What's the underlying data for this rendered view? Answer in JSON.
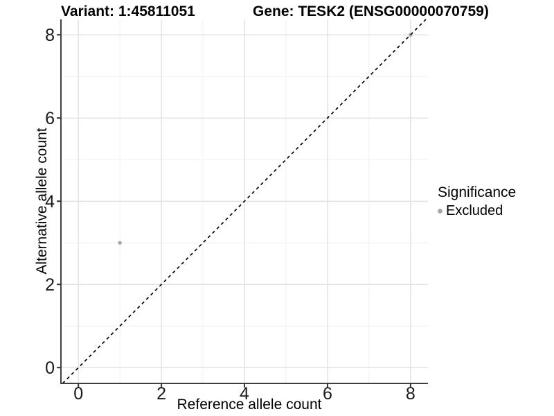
{
  "header": {
    "variant_title": "Variant: 1:45811051",
    "gene_title": "Gene: TESK2 (ENSG00000070759)"
  },
  "chart_data": {
    "type": "scatter",
    "xlabel": "Reference allele count",
    "ylabel": "Alternative allele count",
    "x_ticks": [
      0,
      2,
      4,
      6,
      8
    ],
    "y_ticks": [
      0,
      2,
      4,
      6,
      8
    ],
    "x_minor": [
      1,
      3,
      5,
      7
    ],
    "y_minor": [
      1,
      3,
      5,
      7
    ],
    "xlim": [
      -0.42,
      8.42
    ],
    "ylim": [
      -0.38,
      8.37
    ],
    "grid": "major+minor",
    "reference_line": {
      "equation": "y = x",
      "style": "dashed",
      "color": "#000000"
    },
    "series": [
      {
        "name": "Excluded",
        "color": "#a8a8a8",
        "points": [
          [
            1,
            3
          ],
          [
            8,
            8
          ]
        ]
      }
    ],
    "legend": {
      "title": "Significance",
      "position": "right",
      "items": [
        {
          "label": "Excluded",
          "color": "#a8a8a8"
        }
      ]
    }
  },
  "style": {
    "background": "#ffffff",
    "axis_line_color": "#404040",
    "tick_color": "#333333",
    "tick_label_color": "#1a1a1a",
    "grid_major_color": "#e3e3e3",
    "grid_minor_color": "#f1f1f1"
  }
}
